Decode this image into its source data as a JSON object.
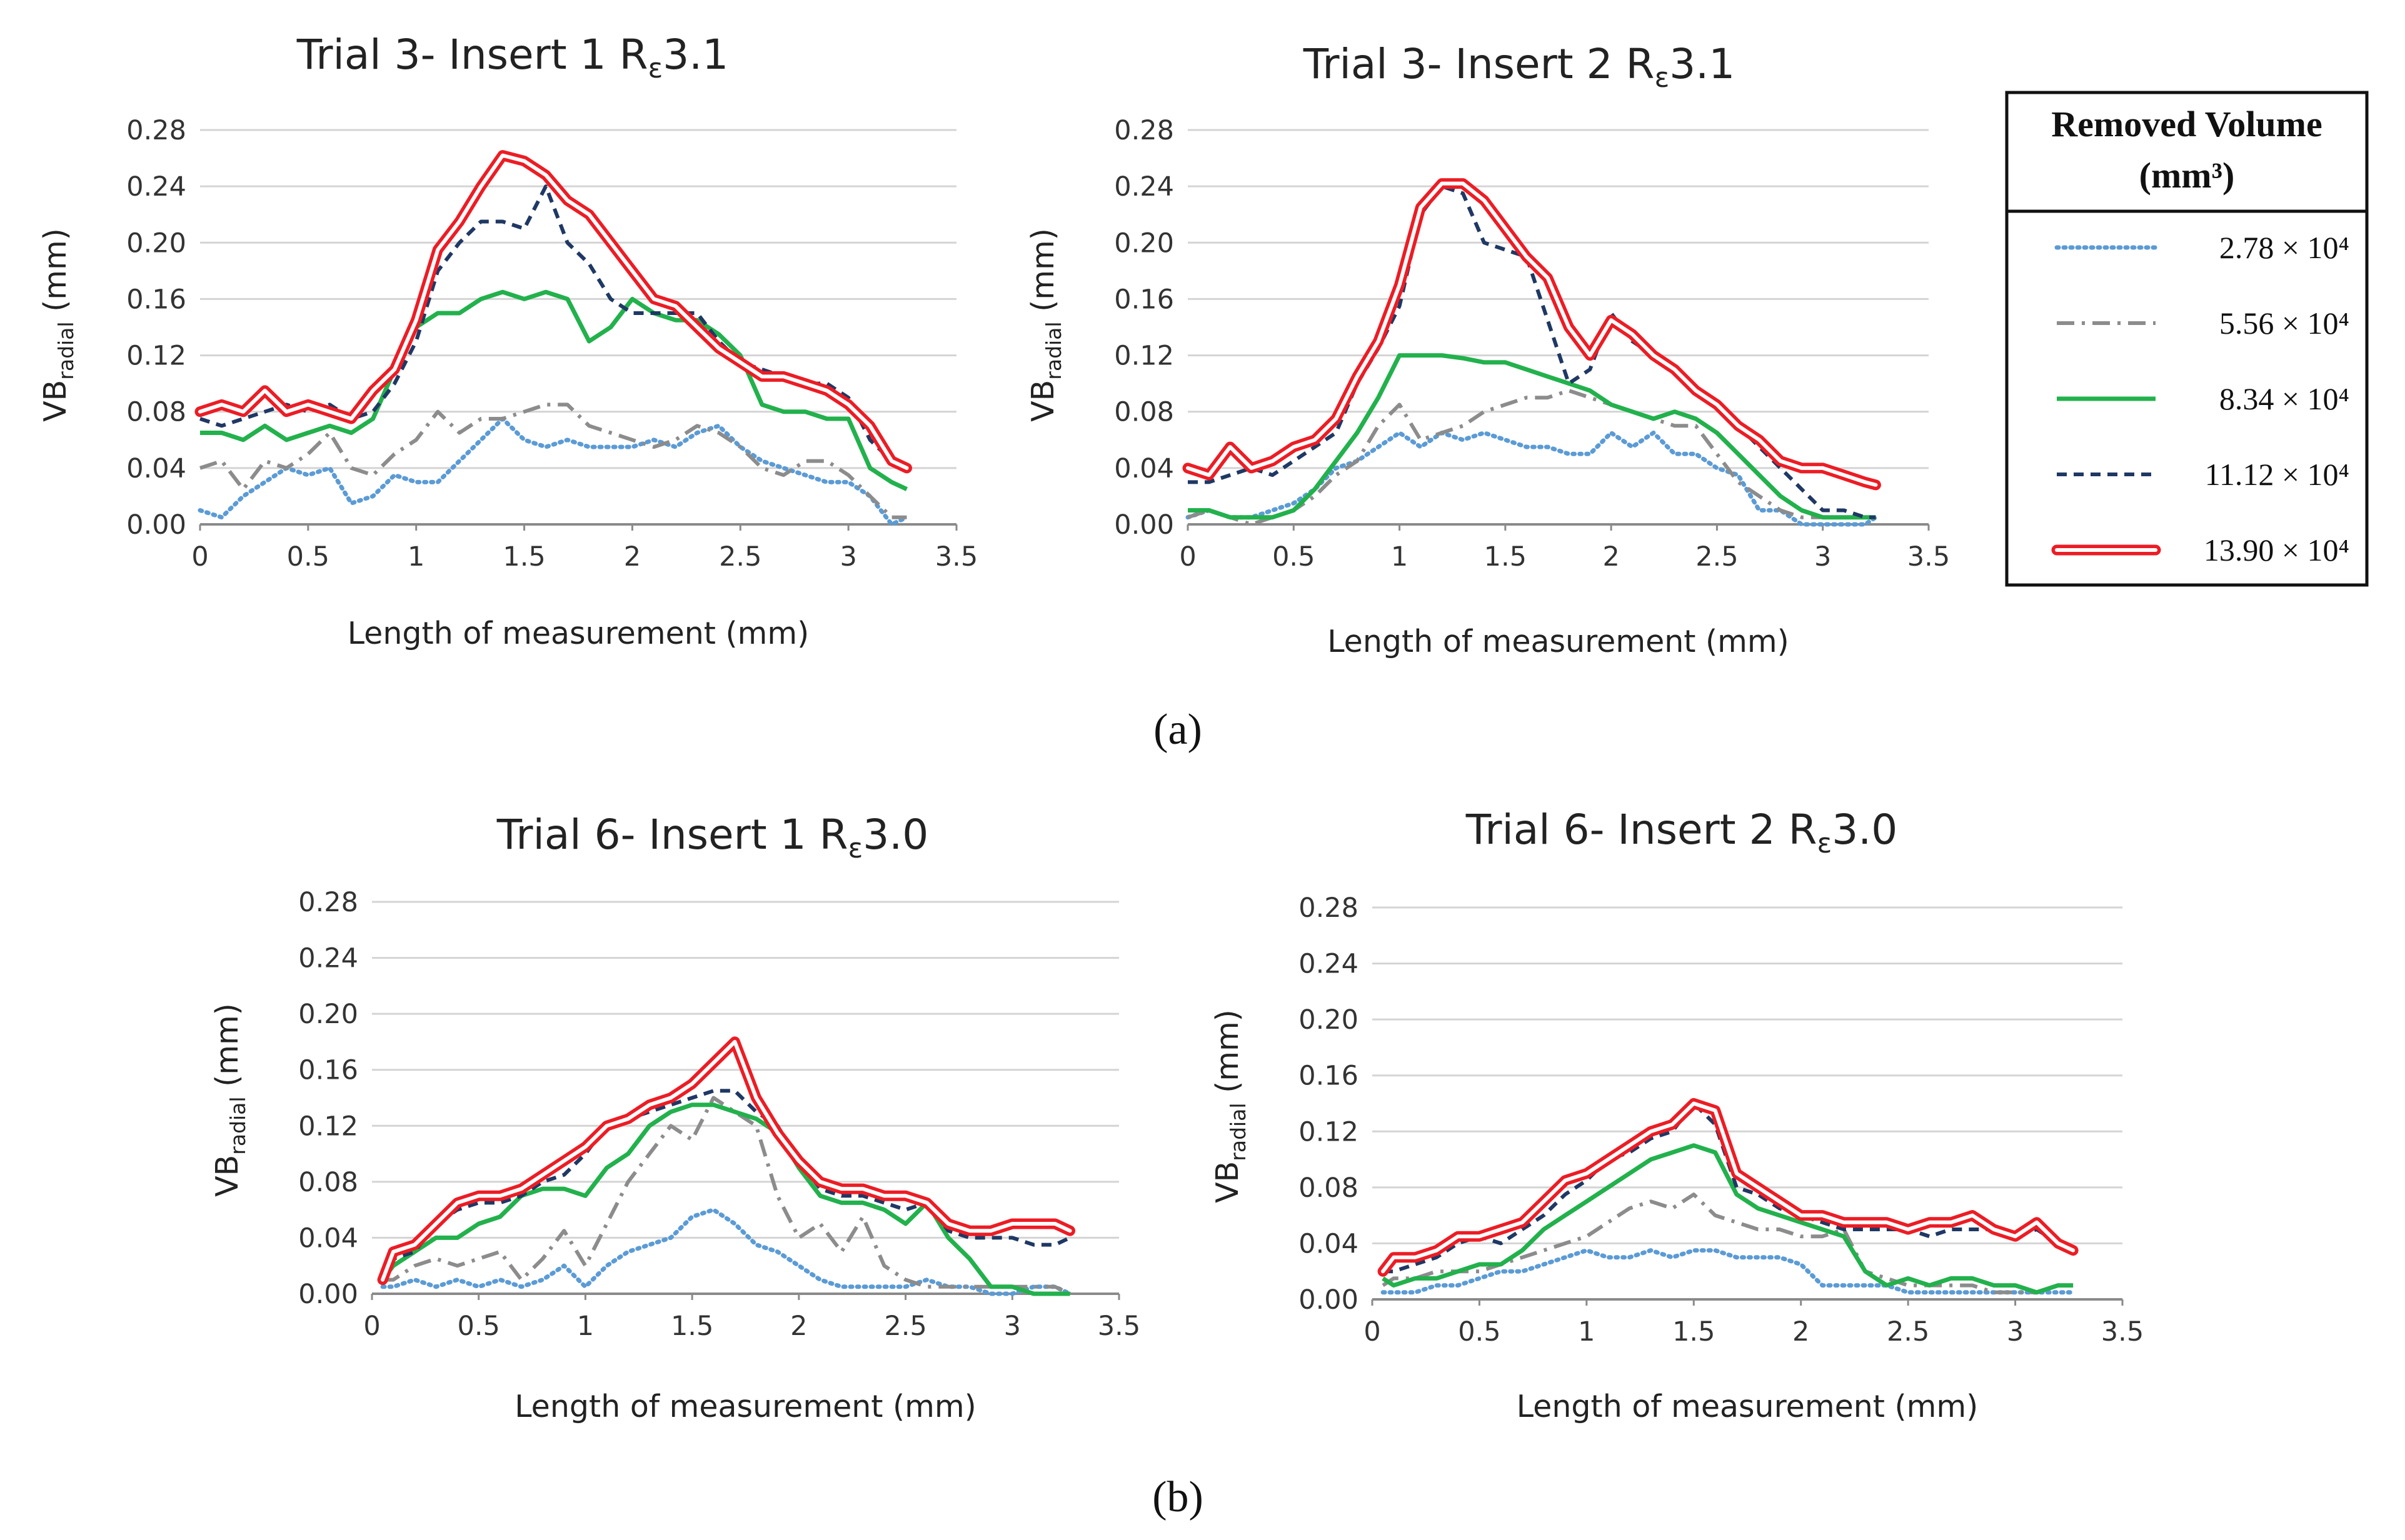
{
  "panels": {
    "a": "(a)",
    "b": "(b)"
  },
  "legend": {
    "title_line1": "Removed Volume",
    "title_line2": "(mm³)",
    "entries": [
      "2.78 × 10⁴",
      "5.56 × 10⁴",
      "8.34 × 10⁴",
      "11.12 × 10⁴",
      "13.90 × 10⁴"
    ]
  },
  "colors": {
    "s1": "#5b9bd5",
    "s2": "#8c8c8c",
    "s3": "#22b14c",
    "s4": "#1f3864",
    "s5": "#ed1c24"
  },
  "chart_data": [
    {
      "type": "line",
      "title": "Trial 3- Insert 1 Rε3.1",
      "title_main": "Trial 3- Insert 1 R",
      "title_sub": "ε",
      "title_tail": "3.1",
      "xlabel": "Length of measurement (mm)",
      "ylabel": "VBradial (mm)",
      "xlim": [
        0,
        3.5
      ],
      "ylim": [
        0,
        0.28
      ],
      "xticks": [
        "0",
        "0.5",
        "1",
        "1.5",
        "2",
        "2.5",
        "3",
        "3.5"
      ],
      "yticks": [
        "0.00",
        "0.04",
        "0.08",
        "0.12",
        "0.16",
        "0.20",
        "0.24",
        "0.28"
      ],
      "x": [
        0,
        0.1,
        0.2,
        0.3,
        0.4,
        0.5,
        0.6,
        0.7,
        0.8,
        0.9,
        1.0,
        1.1,
        1.2,
        1.3,
        1.4,
        1.5,
        1.6,
        1.7,
        1.8,
        1.9,
        2.0,
        2.1,
        2.2,
        2.3,
        2.4,
        2.5,
        2.6,
        2.7,
        2.8,
        2.9,
        3.0,
        3.1,
        3.2,
        3.27
      ],
      "series": [
        {
          "name": "2.78 × 10⁴",
          "values": [
            0.01,
            0.005,
            0.02,
            0.03,
            0.04,
            0.035,
            0.04,
            0.015,
            0.02,
            0.035,
            0.03,
            0.03,
            0.045,
            0.06,
            0.075,
            0.06,
            0.055,
            0.06,
            0.055,
            0.055,
            0.055,
            0.06,
            0.055,
            0.065,
            0.07,
            0.055,
            0.045,
            0.04,
            0.035,
            0.03,
            0.03,
            0.02,
            0.0,
            0.005
          ]
        },
        {
          "name": "5.56 × 10⁴",
          "values": [
            0.04,
            0.045,
            0.025,
            0.045,
            0.04,
            0.05,
            0.065,
            0.04,
            0.035,
            0.05,
            0.06,
            0.08,
            0.065,
            0.075,
            0.075,
            0.08,
            0.085,
            0.085,
            0.07,
            0.065,
            0.06,
            0.055,
            0.06,
            0.07,
            0.065,
            0.055,
            0.04,
            0.035,
            0.045,
            0.045,
            0.035,
            0.02,
            0.005,
            0.005
          ]
        },
        {
          "name": "8.34 × 10⁴",
          "values": [
            0.065,
            0.065,
            0.06,
            0.07,
            0.06,
            0.065,
            0.07,
            0.065,
            0.075,
            0.11,
            0.14,
            0.15,
            0.15,
            0.16,
            0.165,
            0.16,
            0.165,
            0.16,
            0.13,
            0.14,
            0.16,
            0.15,
            0.145,
            0.145,
            0.135,
            0.12,
            0.085,
            0.08,
            0.08,
            0.075,
            0.075,
            0.04,
            0.03,
            0.025
          ]
        },
        {
          "name": "11.12 × 10⁴",
          "values": [
            0.075,
            0.07,
            0.075,
            0.08,
            0.085,
            0.08,
            0.085,
            0.075,
            0.08,
            0.1,
            0.13,
            0.18,
            0.2,
            0.215,
            0.215,
            0.21,
            0.24,
            0.2,
            0.185,
            0.16,
            0.15,
            0.15,
            0.15,
            0.15,
            0.13,
            0.115,
            0.11,
            0.105,
            0.1,
            0.1,
            0.09,
            0.06,
            0.045,
            0.04
          ]
        },
        {
          "name": "13.90 × 10⁴",
          "values": [
            0.08,
            0.085,
            0.08,
            0.095,
            0.08,
            0.085,
            0.08,
            0.075,
            0.095,
            0.11,
            0.145,
            0.195,
            0.215,
            0.24,
            0.262,
            0.258,
            0.248,
            0.23,
            0.22,
            0.2,
            0.18,
            0.16,
            0.155,
            0.14,
            0.125,
            0.115,
            0.105,
            0.105,
            0.1,
            0.095,
            0.085,
            0.07,
            0.045,
            0.04
          ]
        }
      ]
    },
    {
      "type": "line",
      "title": "Trial 3- Insert 2 Rε3.1",
      "title_main": "Trial 3- Insert 2 R",
      "title_sub": "ε",
      "title_tail": "3.1",
      "xlabel": "Length of measurement (mm)",
      "ylabel": "VBradial (mm)",
      "xlim": [
        0,
        3.5
      ],
      "ylim": [
        0,
        0.28
      ],
      "xticks": [
        "0",
        "0.5",
        "1",
        "1.5",
        "2",
        "2.5",
        "3",
        "3.5"
      ],
      "yticks": [
        "0.00",
        "0.04",
        "0.08",
        "0.12",
        "0.16",
        "0.20",
        "0.24",
        "0.28"
      ],
      "x": [
        0,
        0.1,
        0.2,
        0.3,
        0.4,
        0.5,
        0.6,
        0.7,
        0.8,
        0.9,
        1.0,
        1.1,
        1.2,
        1.3,
        1.4,
        1.5,
        1.6,
        1.7,
        1.8,
        1.9,
        2.0,
        2.1,
        2.2,
        2.3,
        2.4,
        2.5,
        2.6,
        2.7,
        2.8,
        2.9,
        3.0,
        3.1,
        3.2,
        3.25
      ],
      "series": [
        {
          "name": "2.78 × 10⁴",
          "values": [
            0.005,
            0.01,
            0.005,
            0.005,
            0.01,
            0.015,
            0.025,
            0.04,
            0.045,
            0.055,
            0.065,
            0.055,
            0.065,
            0.06,
            0.065,
            0.06,
            0.055,
            0.055,
            0.05,
            0.05,
            0.065,
            0.055,
            0.065,
            0.05,
            0.05,
            0.04,
            0.035,
            0.01,
            0.01,
            0.0,
            0.0,
            0.0,
            0.0,
            0.005
          ]
        },
        {
          "name": "5.56 × 10⁴",
          "values": [
            0.005,
            0.01,
            0.005,
            0.0,
            0.005,
            0.01,
            0.02,
            0.035,
            0.045,
            0.07,
            0.085,
            0.06,
            0.065,
            0.07,
            0.08,
            0.085,
            0.09,
            0.09,
            0.095,
            0.09,
            0.085,
            0.08,
            0.075,
            0.07,
            0.07,
            0.05,
            0.03,
            0.02,
            0.01,
            0.005,
            0.005,
            0.005,
            0.005,
            0.005
          ]
        },
        {
          "name": "8.34 × 10⁴",
          "values": [
            0.01,
            0.01,
            0.005,
            0.005,
            0.005,
            0.01,
            0.025,
            0.045,
            0.065,
            0.09,
            0.12,
            0.12,
            0.12,
            0.118,
            0.115,
            0.115,
            0.11,
            0.105,
            0.1,
            0.095,
            0.085,
            0.08,
            0.075,
            0.08,
            0.075,
            0.065,
            0.05,
            0.035,
            0.02,
            0.01,
            0.005,
            0.005,
            0.005,
            0.005
          ]
        },
        {
          "name": "11.12 × 10⁴",
          "values": [
            0.03,
            0.03,
            0.035,
            0.04,
            0.035,
            0.045,
            0.055,
            0.065,
            0.1,
            0.125,
            0.155,
            0.22,
            0.24,
            0.235,
            0.2,
            0.195,
            0.19,
            0.145,
            0.1,
            0.11,
            0.15,
            0.13,
            0.12,
            0.11,
            0.095,
            0.085,
            0.07,
            0.055,
            0.04,
            0.025,
            0.01,
            0.01,
            0.005,
            0.005
          ]
        },
        {
          "name": "13.90 × 10⁴",
          "values": [
            0.04,
            0.035,
            0.055,
            0.04,
            0.045,
            0.055,
            0.06,
            0.075,
            0.105,
            0.13,
            0.17,
            0.225,
            0.242,
            0.242,
            0.23,
            0.21,
            0.19,
            0.175,
            0.14,
            0.12,
            0.145,
            0.135,
            0.12,
            0.11,
            0.095,
            0.085,
            0.07,
            0.06,
            0.045,
            0.04,
            0.04,
            0.035,
            0.03,
            0.028
          ]
        }
      ]
    },
    {
      "type": "line",
      "title": "Trial 6- Insert 1 Rε3.0",
      "title_main": "Trial 6- Insert 1 R",
      "title_sub": "ε",
      "title_tail": "3.0",
      "xlabel": "Length of measurement (mm)",
      "ylabel": "VBradial (mm)",
      "xlim": [
        0,
        3.5
      ],
      "ylim": [
        0,
        0.28
      ],
      "xticks": [
        "0",
        "0.5",
        "1",
        "1.5",
        "2",
        "2.5",
        "3",
        "3.5"
      ],
      "yticks": [
        "0.00",
        "0.04",
        "0.08",
        "0.12",
        "0.16",
        "0.20",
        "0.24",
        "0.28"
      ],
      "x": [
        0.05,
        0.1,
        0.2,
        0.3,
        0.4,
        0.5,
        0.6,
        0.7,
        0.8,
        0.9,
        1.0,
        1.1,
        1.2,
        1.3,
        1.4,
        1.5,
        1.6,
        1.7,
        1.8,
        1.9,
        2.0,
        2.1,
        2.2,
        2.3,
        2.4,
        2.5,
        2.6,
        2.7,
        2.8,
        2.9,
        3.0,
        3.1,
        3.2,
        3.27
      ],
      "series": [
        {
          "name": "2.78 × 10⁴",
          "values": [
            0.005,
            0.005,
            0.01,
            0.005,
            0.01,
            0.005,
            0.01,
            0.005,
            0.01,
            0.02,
            0.005,
            0.02,
            0.03,
            0.035,
            0.04,
            0.055,
            0.06,
            0.05,
            0.035,
            0.03,
            0.02,
            0.01,
            0.005,
            0.005,
            0.005,
            0.005,
            0.01,
            0.005,
            0.005,
            0.0,
            0.0,
            0.005,
            0.005,
            0.0
          ]
        },
        {
          "name": "5.56 × 10⁴",
          "values": [
            0.01,
            0.01,
            0.02,
            0.025,
            0.02,
            0.025,
            0.03,
            0.01,
            0.025,
            0.045,
            0.02,
            0.05,
            0.08,
            0.1,
            0.12,
            0.11,
            0.14,
            0.13,
            0.12,
            0.07,
            0.04,
            0.05,
            0.03,
            0.055,
            0.02,
            0.01,
            0.005,
            0.005,
            0.005,
            0.005,
            0.005,
            0.005,
            0.005,
            0.0
          ]
        },
        {
          "name": "8.34 × 10⁴",
          "values": [
            0.01,
            0.02,
            0.03,
            0.04,
            0.04,
            0.05,
            0.055,
            0.07,
            0.075,
            0.075,
            0.07,
            0.09,
            0.1,
            0.12,
            0.13,
            0.135,
            0.135,
            0.13,
            0.125,
            0.115,
            0.09,
            0.07,
            0.065,
            0.065,
            0.06,
            0.05,
            0.065,
            0.04,
            0.025,
            0.005,
            0.005,
            0.0,
            0.0,
            0.0
          ]
        },
        {
          "name": "11.12 × 10⁴",
          "values": [
            0.01,
            0.025,
            0.03,
            0.05,
            0.06,
            0.065,
            0.065,
            0.07,
            0.08,
            0.085,
            0.1,
            0.12,
            0.125,
            0.13,
            0.135,
            0.14,
            0.145,
            0.145,
            0.13,
            0.12,
            0.095,
            0.075,
            0.07,
            0.07,
            0.065,
            0.06,
            0.065,
            0.045,
            0.04,
            0.04,
            0.04,
            0.035,
            0.035,
            0.04
          ]
        },
        {
          "name": "13.90 × 10⁴",
          "values": [
            0.01,
            0.03,
            0.035,
            0.05,
            0.065,
            0.07,
            0.07,
            0.075,
            0.085,
            0.095,
            0.105,
            0.12,
            0.125,
            0.135,
            0.14,
            0.15,
            0.165,
            0.18,
            0.14,
            0.115,
            0.095,
            0.08,
            0.075,
            0.075,
            0.07,
            0.07,
            0.065,
            0.05,
            0.045,
            0.045,
            0.05,
            0.05,
            0.05,
            0.045
          ]
        }
      ]
    },
    {
      "type": "line",
      "title": "Trial 6- Insert 2 Rε3.0",
      "title_main": "Trial 6- Insert 2 R",
      "title_sub": "ε",
      "title_tail": "3.0",
      "xlabel": "Length of measurement (mm)",
      "ylabel": "VBradial (mm)",
      "xlim": [
        0,
        3.5
      ],
      "ylim": [
        0,
        0.28
      ],
      "xticks": [
        "0",
        "0.5",
        "1",
        "1.5",
        "2",
        "2.5",
        "3",
        "3.5"
      ],
      "yticks": [
        "0.00",
        "0.04",
        "0.08",
        "0.12",
        "0.16",
        "0.20",
        "0.24",
        "0.28"
      ],
      "x": [
        0.05,
        0.1,
        0.2,
        0.3,
        0.4,
        0.5,
        0.6,
        0.7,
        0.8,
        0.9,
        1.0,
        1.1,
        1.2,
        1.3,
        1.4,
        1.5,
        1.6,
        1.7,
        1.8,
        1.9,
        2.0,
        2.1,
        2.2,
        2.3,
        2.4,
        2.5,
        2.6,
        2.7,
        2.8,
        2.9,
        3.0,
        3.1,
        3.2,
        3.27
      ],
      "series": [
        {
          "name": "2.78 × 10⁴",
          "values": [
            0.005,
            0.005,
            0.005,
            0.01,
            0.01,
            0.015,
            0.02,
            0.02,
            0.025,
            0.03,
            0.035,
            0.03,
            0.03,
            0.035,
            0.03,
            0.035,
            0.035,
            0.03,
            0.03,
            0.03,
            0.025,
            0.01,
            0.01,
            0.01,
            0.01,
            0.005,
            0.005,
            0.005,
            0.005,
            0.005,
            0.005,
            0.005,
            0.005,
            0.005
          ]
        },
        {
          "name": "5.56 × 10⁴",
          "values": [
            0.01,
            0.015,
            0.015,
            0.02,
            0.02,
            0.02,
            0.025,
            0.03,
            0.035,
            0.04,
            0.045,
            0.055,
            0.065,
            0.07,
            0.065,
            0.075,
            0.06,
            0.055,
            0.05,
            0.05,
            0.045,
            0.045,
            0.05,
            0.02,
            0.015,
            0.01,
            0.01,
            0.01,
            0.01,
            0.005,
            0.005,
            0.005,
            0.01,
            0.01
          ]
        },
        {
          "name": "8.34 × 10⁴",
          "values": [
            0.015,
            0.01,
            0.015,
            0.015,
            0.02,
            0.025,
            0.025,
            0.035,
            0.05,
            0.06,
            0.07,
            0.08,
            0.09,
            0.1,
            0.105,
            0.11,
            0.105,
            0.075,
            0.065,
            0.06,
            0.055,
            0.05,
            0.045,
            0.02,
            0.01,
            0.015,
            0.01,
            0.015,
            0.015,
            0.01,
            0.01,
            0.005,
            0.01,
            0.01
          ]
        },
        {
          "name": "11.12 × 10⁴",
          "values": [
            0.02,
            0.02,
            0.025,
            0.03,
            0.04,
            0.045,
            0.04,
            0.05,
            0.06,
            0.075,
            0.085,
            0.1,
            0.105,
            0.115,
            0.12,
            0.14,
            0.125,
            0.08,
            0.075,
            0.065,
            0.06,
            0.055,
            0.05,
            0.05,
            0.05,
            0.05,
            0.045,
            0.05,
            0.05,
            0.05,
            0.045,
            0.05,
            0.04,
            0.035
          ]
        },
        {
          "name": "13.90 × 10⁴",
          "values": [
            0.02,
            0.03,
            0.03,
            0.035,
            0.045,
            0.045,
            0.05,
            0.055,
            0.07,
            0.085,
            0.09,
            0.1,
            0.11,
            0.12,
            0.125,
            0.14,
            0.135,
            0.09,
            0.08,
            0.07,
            0.06,
            0.06,
            0.055,
            0.055,
            0.055,
            0.05,
            0.055,
            0.055,
            0.06,
            0.05,
            0.045,
            0.055,
            0.04,
            0.035
          ]
        }
      ]
    }
  ]
}
